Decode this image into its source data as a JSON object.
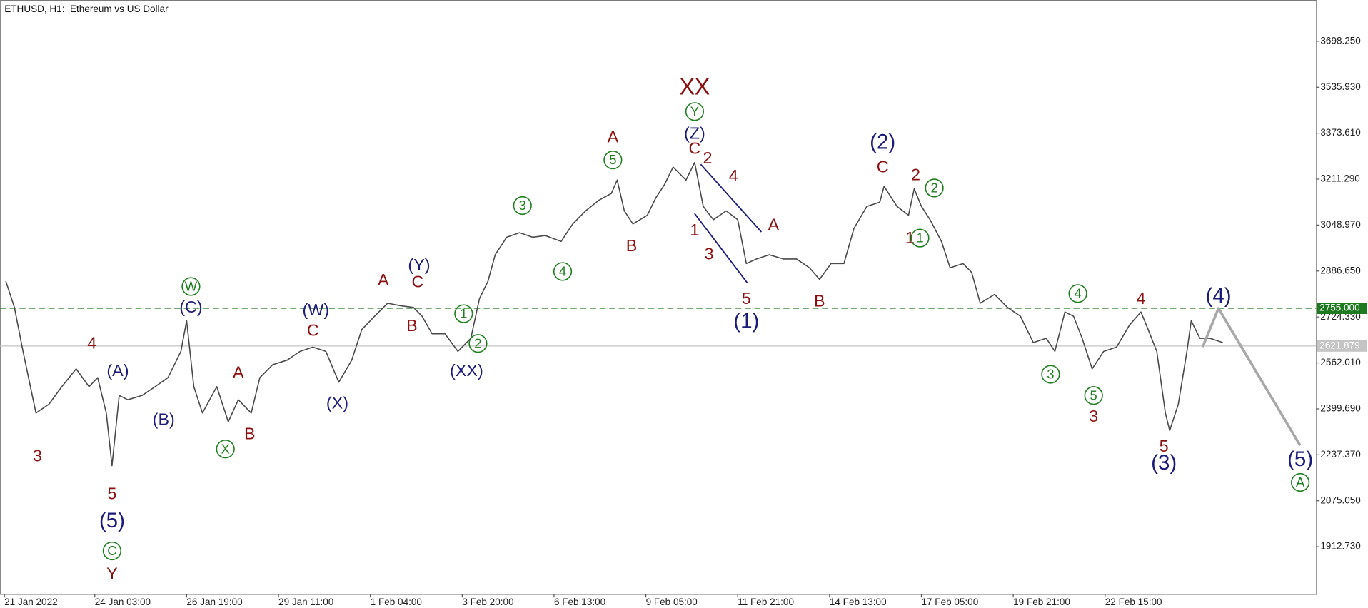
{
  "chart_data": {
    "type": "line",
    "title": "ETHUSD, H1:  Ethereum vs US Dollar",
    "xlim": [
      -3,
      914
    ],
    "ylim": [
      1746,
      3844
    ],
    "xticks": [
      {
        "value": 0,
        "label": "21 Jan 2022"
      },
      {
        "value": 63,
        "label": "24 Jan 03:00"
      },
      {
        "value": 127,
        "label": "26 Jan 19:00"
      },
      {
        "value": 191,
        "label": "29 Jan 11:00"
      },
      {
        "value": 255,
        "label": "1 Feb 04:00"
      },
      {
        "value": 319,
        "label": "3 Feb 20:00"
      },
      {
        "value": 383,
        "label": "6 Feb 13:00"
      },
      {
        "value": 447,
        "label": "9 Feb 05:00"
      },
      {
        "value": 511,
        "label": "11 Feb 21:00"
      },
      {
        "value": 575,
        "label": "14 Feb 13:00"
      },
      {
        "value": 639,
        "label": "17 Feb 05:00"
      },
      {
        "value": 703,
        "label": "19 Feb 21:00"
      },
      {
        "value": 767,
        "label": "22 Feb 15:00"
      }
    ],
    "yticks": [
      {
        "value": 3698.25,
        "label": "3698.250"
      },
      {
        "value": 3535.93,
        "label": "3535.930"
      },
      {
        "value": 3373.61,
        "label": "3373.610"
      },
      {
        "value": 3211.29,
        "label": "3211.290"
      },
      {
        "value": 3048.97,
        "label": "3048.970"
      },
      {
        "value": 2886.65,
        "label": "2886.650"
      },
      {
        "value": 2724.33,
        "label": "2724.330"
      },
      {
        "value": 2562.01,
        "label": "2562.010"
      },
      {
        "value": 2399.69,
        "label": "2399.690"
      },
      {
        "value": 2237.37,
        "label": "2237.370"
      },
      {
        "value": 2075.05,
        "label": "2075.050"
      },
      {
        "value": 1912.73,
        "label": "1912.730"
      }
    ],
    "levels": [
      {
        "value": 2755,
        "label": "2755.000",
        "color": "#1e7a1e",
        "dashed": true
      },
      {
        "value": 2621.879,
        "label": "2621.879",
        "color": "#c4c4c4"
      }
    ],
    "series": [
      {
        "color": "#4a4a4a",
        "x": [
          1,
          7,
          13,
          22,
          31,
          40,
          50,
          59,
          65,
          71,
          75,
          80,
          86,
          96,
          105,
          114,
          123,
          127,
          132,
          138,
          148,
          156,
          163,
          172,
          178,
          187,
          197,
          206,
          215,
          224,
          233,
          242,
          249,
          258,
          267,
          276,
          285,
          291,
          298,
          307,
          316,
          325,
          331,
          337,
          342,
          350,
          359,
          368,
          377,
          388,
          396,
          405,
          414,
          423,
          427,
          432,
          438,
          448,
          454,
          460,
          466,
          475,
          481,
          487,
          494,
          503,
          511,
          517,
          524,
          533,
          543,
          552,
          561,
          568,
          576,
          585,
          592,
          601,
          610,
          613,
          622,
          630,
          634,
          639,
          645,
          653,
          659,
          668,
          674,
          680,
          690,
          699,
          708,
          717,
          726,
          732,
          739,
          745,
          751,
          758,
          766,
          775,
          784,
          792,
          797,
          803,
          809,
          812,
          818,
          824,
          827,
          833,
          840,
          849
        ],
        "values": [
          2851,
          2758,
          2603,
          2385,
          2416,
          2478,
          2541,
          2478,
          2510,
          2385,
          2199,
          2447,
          2432,
          2447,
          2478,
          2510,
          2603,
          2711,
          2478,
          2385,
          2478,
          2354,
          2432,
          2385,
          2510,
          2556,
          2572,
          2603,
          2618,
          2603,
          2494,
          2572,
          2680,
          2727,
          2773,
          2764,
          2758,
          2727,
          2665,
          2665,
          2603,
          2649,
          2789,
          2851,
          2944,
          3006,
          3022,
          3006,
          3012,
          2991,
          3053,
          3099,
          3136,
          3161,
          3208,
          3099,
          3053,
          3084,
          3146,
          3192,
          3254,
          3208,
          3270,
          3115,
          3068,
          3099,
          3068,
          2913,
          2929,
          2944,
          2929,
          2929,
          2898,
          2857,
          2913,
          2913,
          3037,
          3115,
          3130,
          3186,
          3115,
          3084,
          3177,
          3115,
          3068,
          2991,
          2898,
          2913,
          2882,
          2773,
          2804,
          2758,
          2727,
          2634,
          2649,
          2603,
          2742,
          2727,
          2649,
          2541,
          2603,
          2618,
          2696,
          2742,
          2680,
          2603,
          2385,
          2323,
          2416,
          2603,
          2711,
          2649,
          2649,
          2634
        ]
      },
      {
        "color": "#a8a8a8",
        "x": [
          835,
          846,
          903
        ],
        "values": [
          2618,
          2755,
          2270
        ]
      }
    ],
    "annotations": [
      {
        "text": "3",
        "x": 23,
        "y": 2233,
        "color": "#8b1010"
      },
      {
        "text": "4",
        "x": 61,
        "y": 2631,
        "color": "#8b1010"
      },
      {
        "text": "5",
        "x": 75,
        "y": 2100,
        "color": "#8b1010"
      },
      {
        "text": "(5)",
        "x": 75,
        "y": 2004,
        "color": "#1c1c7a"
      },
      {
        "text": "C",
        "x": 75,
        "y": 1898,
        "color": "#1f7f1f",
        "circled": true
      },
      {
        "text": "Y",
        "x": 75,
        "y": 1817,
        "color": "#8b1010"
      },
      {
        "text": "(A)",
        "x": 79,
        "y": 2534,
        "color": "#1c1c7a"
      },
      {
        "text": "(B)",
        "x": 111,
        "y": 2361,
        "color": "#1c1c7a"
      },
      {
        "text": "W",
        "x": 130,
        "y": 2832,
        "color": "#1f7f1f",
        "circled": true
      },
      {
        "text": "(C)",
        "x": 130,
        "y": 2758,
        "color": "#1c1c7a"
      },
      {
        "text": "A",
        "x": 163,
        "y": 2528,
        "color": "#8b1010"
      },
      {
        "text": "B",
        "x": 171,
        "y": 2311,
        "color": "#8b1010"
      },
      {
        "text": "X",
        "x": 154,
        "y": 2258,
        "color": "#1f7f1f",
        "circled": true
      },
      {
        "text": "C",
        "x": 215,
        "y": 2677,
        "color": "#8b1010"
      },
      {
        "text": "(W)",
        "x": 217,
        "y": 2748,
        "color": "#1c1c7a"
      },
      {
        "text": "(X)",
        "x": 232,
        "y": 2419,
        "color": "#1c1c7a"
      },
      {
        "text": "A",
        "x": 264,
        "y": 2854,
        "color": "#8b1010"
      },
      {
        "text": "(Y)",
        "x": 289,
        "y": 2907,
        "color": "#1c1c7a"
      },
      {
        "text": "C",
        "x": 288,
        "y": 2848,
        "color": "#8b1010"
      },
      {
        "text": "B",
        "x": 284,
        "y": 2693,
        "color": "#8b1010"
      },
      {
        "text": "1",
        "x": 320,
        "y": 2736,
        "color": "#1f7f1f",
        "circled": true
      },
      {
        "text": "2",
        "x": 330,
        "y": 2631,
        "color": "#1f7f1f",
        "circled": true
      },
      {
        "text": "(XX)",
        "x": 322,
        "y": 2534,
        "color": "#1c1c7a"
      },
      {
        "text": "3",
        "x": 361,
        "y": 3118,
        "color": "#1f7f1f",
        "circled": true
      },
      {
        "text": "4",
        "x": 389,
        "y": 2885,
        "color": "#1f7f1f",
        "circled": true
      },
      {
        "text": "5",
        "x": 424,
        "y": 3279,
        "color": "#1f7f1f",
        "circled": true
      },
      {
        "text": "A",
        "x": 424,
        "y": 3360,
        "color": "#8b1010"
      },
      {
        "text": "B",
        "x": 437,
        "y": 2975,
        "color": "#8b1010"
      },
      {
        "text": "XX",
        "x": 481,
        "y": 3534,
        "color": "#8b1010"
      },
      {
        "text": "Y",
        "x": 481,
        "y": 3450,
        "color": "#1f7f1f",
        "circled": true
      },
      {
        "text": "(Z)",
        "x": 481,
        "y": 3372,
        "color": "#1c1c7a"
      },
      {
        "text": "C",
        "x": 481,
        "y": 3320,
        "color": "#8b1010"
      },
      {
        "text": "2",
        "x": 490,
        "y": 3285,
        "color": "#8b1010"
      },
      {
        "text": "4",
        "x": 508,
        "y": 3223,
        "color": "#8b1010"
      },
      {
        "text": "A",
        "x": 536,
        "y": 3050,
        "color": "#8b1010"
      },
      {
        "text": "1",
        "x": 481,
        "y": 3031,
        "color": "#8b1010"
      },
      {
        "text": "3",
        "x": 491,
        "y": 2947,
        "color": "#8b1010"
      },
      {
        "text": "5",
        "x": 517,
        "y": 2789,
        "color": "#8b1010"
      },
      {
        "text": "(1)",
        "x": 517,
        "y": 2708,
        "color": "#1c1c7a"
      },
      {
        "text": "B",
        "x": 568,
        "y": 2780,
        "color": "#8b1010"
      },
      {
        "text": "(2)",
        "x": 612,
        "y": 3341,
        "color": "#1c1c7a"
      },
      {
        "text": "C",
        "x": 612,
        "y": 3254,
        "color": "#8b1010"
      },
      {
        "text": "2",
        "x": 635,
        "y": 3226,
        "color": "#8b1010"
      },
      {
        "text": "2",
        "x": 648,
        "y": 3180,
        "color": "#1f7f1f",
        "circled": true
      },
      {
        "text": "1",
        "x": 631,
        "y": 3003,
        "color": "#8b1010"
      },
      {
        "text": "1",
        "x": 638,
        "y": 3003,
        "color": "#1f7f1f",
        "circled": true
      },
      {
        "text": "4",
        "x": 748,
        "y": 2807,
        "color": "#1f7f1f",
        "circled": true
      },
      {
        "text": "3",
        "x": 729,
        "y": 2522,
        "color": "#1f7f1f",
        "circled": true
      },
      {
        "text": "5",
        "x": 759,
        "y": 2447,
        "color": "#1f7f1f",
        "circled": true
      },
      {
        "text": "3",
        "x": 759,
        "y": 2373,
        "color": "#8b1010"
      },
      {
        "text": "4",
        "x": 792,
        "y": 2789,
        "color": "#8b1010"
      },
      {
        "text": "5",
        "x": 808,
        "y": 2267,
        "color": "#8b1010"
      },
      {
        "text": "(3)",
        "x": 808,
        "y": 2208,
        "color": "#1c1c7a"
      },
      {
        "text": "(4)",
        "x": 846,
        "y": 2798,
        "color": "#1c1c7a"
      },
      {
        "text": "(5)",
        "x": 903,
        "y": 2221,
        "color": "#1c1c7a"
      },
      {
        "text": "A",
        "x": 903,
        "y": 2140,
        "color": "#1f7f1f",
        "circled": true
      }
    ]
  }
}
